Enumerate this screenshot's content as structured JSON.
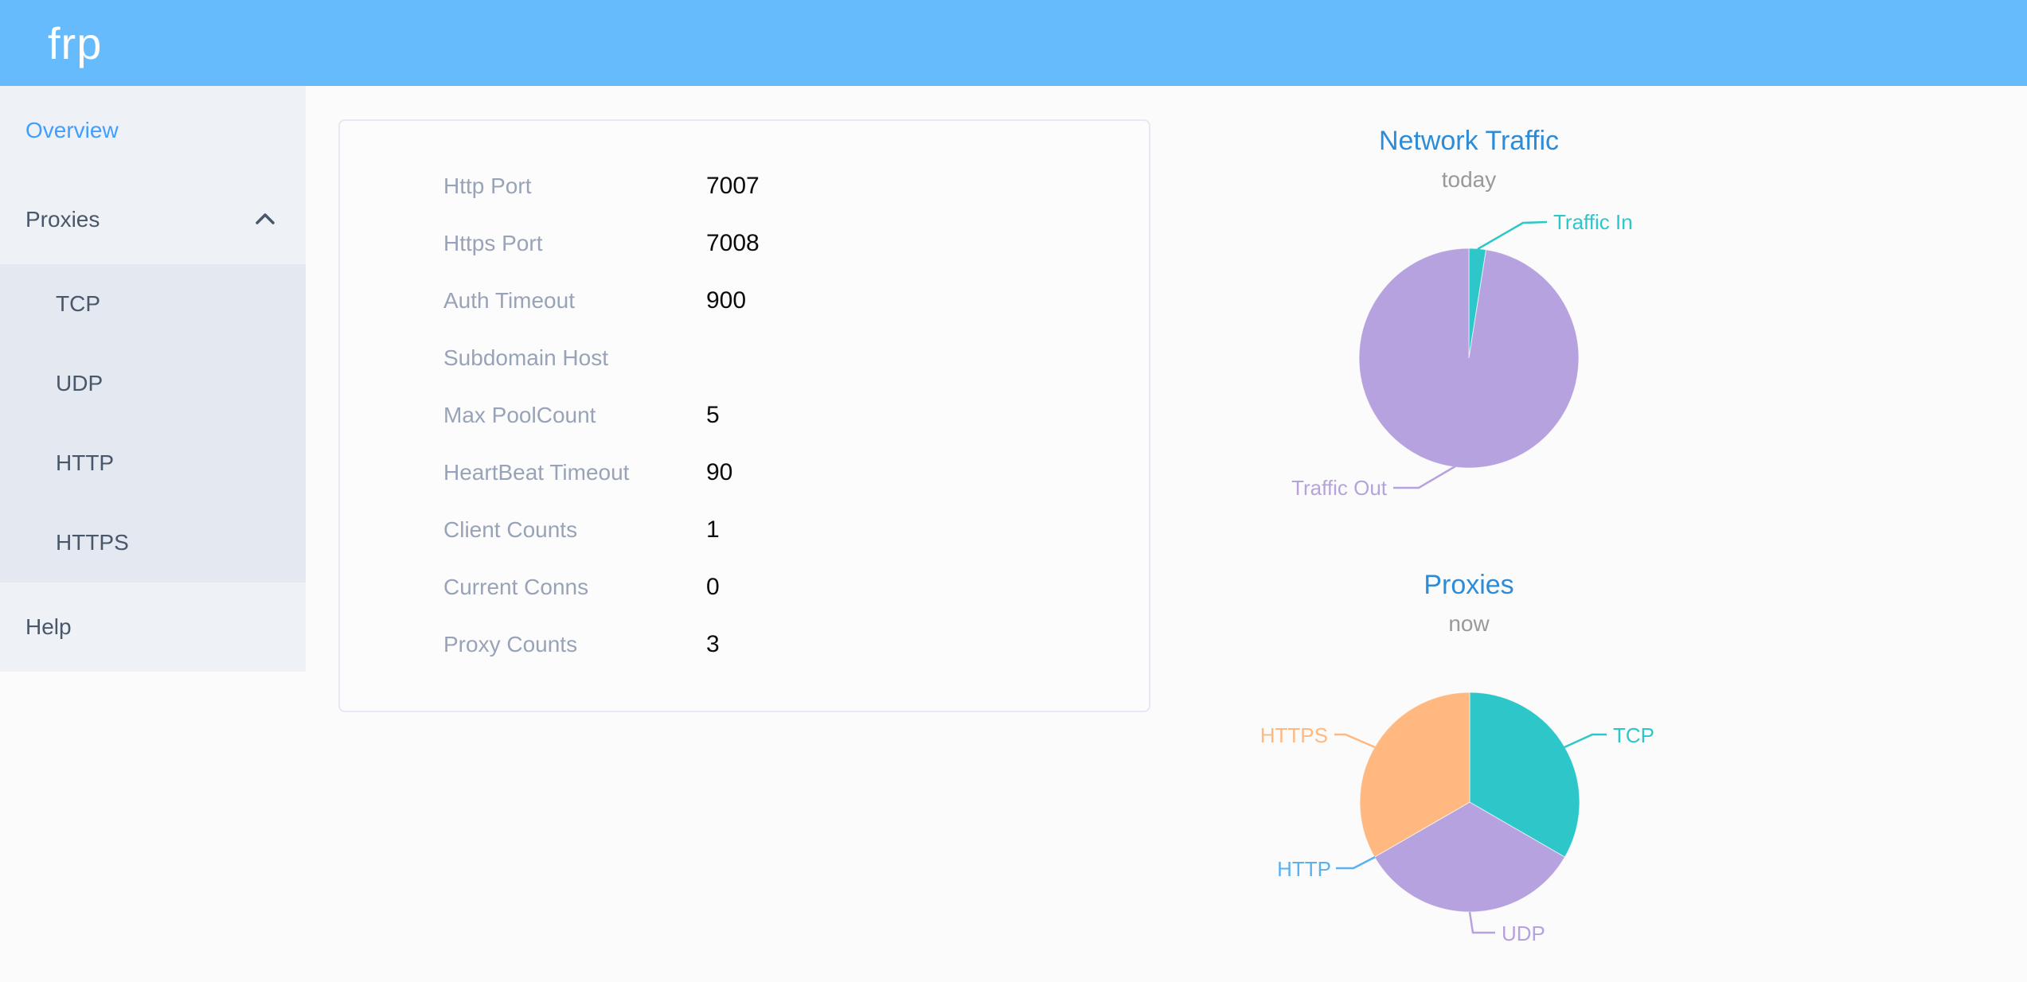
{
  "theme": {
    "--header-bg": "#65BBFB",
    "--page-bg": "#FBFBFB",
    "--sidebar-bg": "#EEF1F6",
    "--submenu-bg": "#E4E8F1",
    "--menu-text": "#48576A",
    "--active-blue": "#409EFF",
    "--card-border": "#E6E9F4",
    "--label-gray": "#99A3B7",
    "--value-black": "#0B0B0B",
    "--title-blue": "#2D8CD8",
    "--subtitle-gray": "#999999"
  },
  "header": {
    "logo": "frp"
  },
  "sidebar": {
    "items": [
      {
        "label": "Overview",
        "active": true
      },
      {
        "label": "Proxies",
        "expanded": true,
        "children": [
          "TCP",
          "UDP",
          "HTTP",
          "HTTPS"
        ]
      },
      {
        "label": "Help"
      }
    ]
  },
  "overview_panel": {
    "rows": [
      {
        "label": "Http Port",
        "value": "7007"
      },
      {
        "label": "Https Port",
        "value": "7008"
      },
      {
        "label": "Auth Timeout",
        "value": "900"
      },
      {
        "label": "Subdomain Host",
        "value": ""
      },
      {
        "label": "Max PoolCount",
        "value": "5"
      },
      {
        "label": "HeartBeat Timeout",
        "value": "90"
      },
      {
        "label": "Client Counts",
        "value": "1"
      },
      {
        "label": "Current Conns",
        "value": "0"
      },
      {
        "label": "Proxy Counts",
        "value": "3"
      }
    ]
  },
  "chart_data": [
    {
      "type": "pie",
      "title": "Network Traffic",
      "subtitle": "today",
      "legend_position": "none",
      "unit": "percent-of-today-traffic (estimated from slice angles)",
      "series": [
        {
          "name": "Traffic In",
          "value": 2.5,
          "color": "#2EC7C9"
        },
        {
          "name": "Traffic Out",
          "value": 97.5,
          "color": "#B6A2DE"
        }
      ]
    },
    {
      "type": "pie",
      "title": "Proxies",
      "subtitle": "now",
      "legend_position": "none",
      "unit": "proxy count",
      "series": [
        {
          "name": "TCP",
          "value": 1,
          "color": "#2EC7C9"
        },
        {
          "name": "UDP",
          "value": 1,
          "color": "#B6A2DE"
        },
        {
          "name": "HTTP",
          "value": 0,
          "color": "#5AB1EF"
        },
        {
          "name": "HTTPS",
          "value": 1,
          "color": "#FFB980"
        }
      ]
    }
  ]
}
